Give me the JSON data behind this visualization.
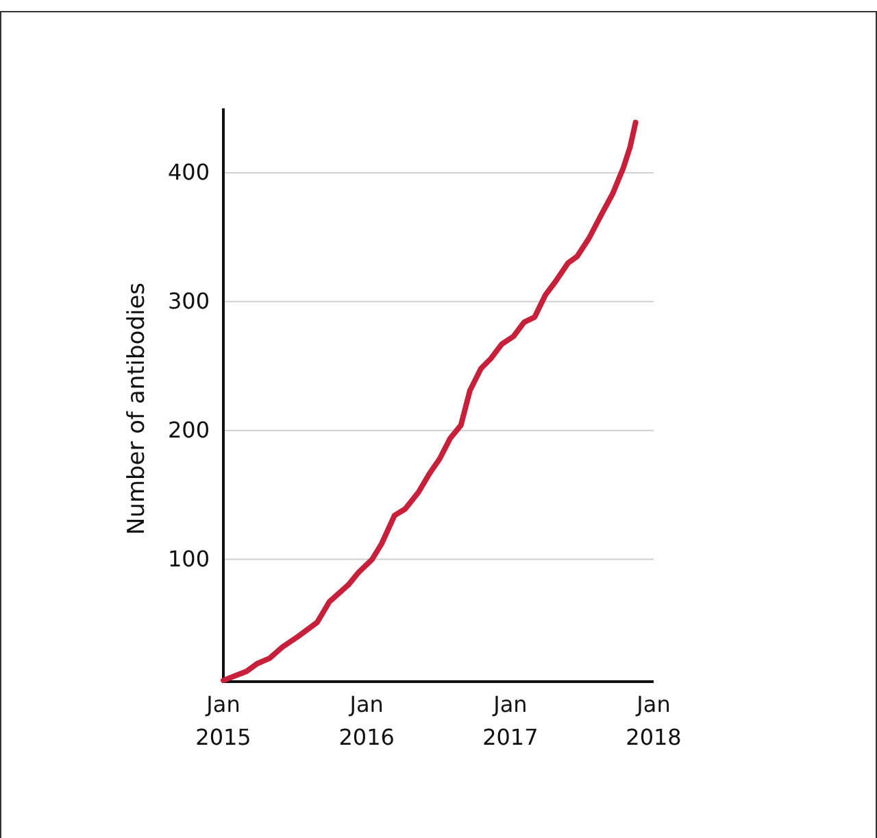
{
  "chart_data": {
    "type": "line",
    "ylabel": "Number of antibodies",
    "x": [
      "2015-01-01",
      "2015-03-01",
      "2015-03-28",
      "2015-04-28",
      "2015-06-01",
      "2015-07-10",
      "2015-08-28",
      "2015-09-28",
      "2015-11-15",
      "2015-12-12",
      "2016-01-15",
      "2016-02-08",
      "2016-03-12",
      "2016-04-08",
      "2016-05-12",
      "2016-06-08",
      "2016-07-05",
      "2016-08-01",
      "2016-08-28",
      "2016-09-20",
      "2016-10-18",
      "2016-11-13",
      "2016-12-10",
      "2017-01-09",
      "2017-02-05",
      "2017-03-04",
      "2017-03-31",
      "2017-04-27",
      "2017-05-28",
      "2017-06-20",
      "2017-07-20",
      "2017-08-20",
      "2017-09-19",
      "2017-10-16",
      "2017-11-02",
      "2017-11-16"
    ],
    "series": [
      {
        "color": "#c8203a",
        "values": [
          6,
          13,
          19,
          23,
          32,
          40,
          51,
          67,
          80,
          90,
          100,
          112,
          134,
          139,
          152,
          166,
          178,
          194,
          204,
          231,
          248,
          256,
          267,
          273,
          284,
          288,
          305,
          316,
          330,
          335,
          349,
          367,
          384,
          404,
          420,
          439
        ]
      }
    ],
    "xlim": [
      "2015-01-01",
      "2018-01-01"
    ],
    "xticks": [
      {
        "value": "2015-01-01",
        "label": "Jan\n2015"
      },
      {
        "value": "2016-01-01",
        "label": "Jan\n2016"
      },
      {
        "value": "2017-01-01",
        "label": "Jan\n2017"
      },
      {
        "value": "2018-01-01",
        "label": "Jan\n2018"
      }
    ],
    "ylim": [
      5,
      450
    ],
    "yticks": [
      100,
      200,
      300,
      400
    ],
    "grid": "y",
    "line_style": "solid",
    "marker": "none"
  }
}
